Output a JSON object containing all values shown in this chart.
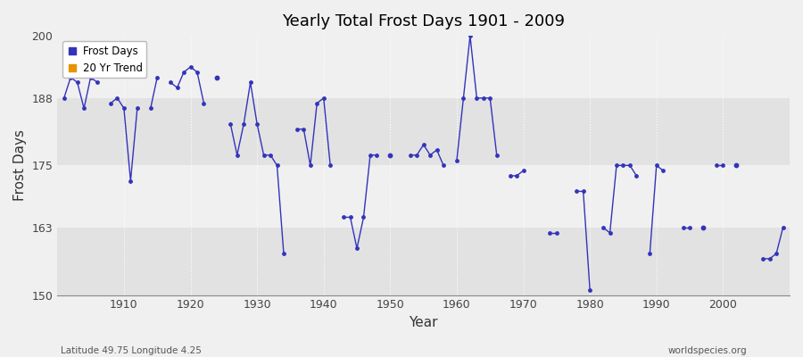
{
  "title": "Yearly Total Frost Days 1901 - 2009",
  "xlabel": "Year",
  "ylabel": "Frost Days",
  "lat_lon_label": "Latitude 49.75 Longitude 4.25",
  "source_label": "worldspecies.org",
  "ylim": [
    150,
    200
  ],
  "xlim": [
    1900,
    2010
  ],
  "yticks": [
    150,
    163,
    175,
    188,
    200
  ],
  "xticks": [
    1910,
    1920,
    1930,
    1940,
    1950,
    1960,
    1970,
    1980,
    1990,
    2000
  ],
  "line_color": "#3333bb",
  "bg_color": "#f0f0f0",
  "band_colors": [
    "#e2e2e2",
    "#f0f0f0",
    "#e2e2e2",
    "#f0f0f0"
  ],
  "band_ranges": [
    [
      150,
      163
    ],
    [
      163,
      175
    ],
    [
      175,
      188
    ],
    [
      188,
      200
    ]
  ],
  "frost_days_years": [
    1901,
    1902,
    1903,
    1904,
    1905,
    1906,
    1908,
    1909,
    1910,
    1911,
    1912,
    1914,
    1915,
    1917,
    1918,
    1919,
    1920,
    1921,
    1922,
    1924,
    1926,
    1927,
    1928,
    1929,
    1930,
    1931,
    1932,
    1933,
    1934,
    1936,
    1937,
    1938,
    1939,
    1940,
    1941,
    1943,
    1944,
    1945,
    1946,
    1947,
    1948,
    1950,
    1953,
    1954,
    1955,
    1956,
    1957,
    1958,
    1960,
    1961,
    1962,
    1963,
    1964,
    1965,
    1966,
    1968,
    1969,
    1970,
    1974,
    1975,
    1978,
    1979,
    1980,
    1982,
    1983,
    1984,
    1985,
    1986,
    1987,
    1989,
    1990,
    1991,
    1994,
    1995,
    1997,
    1999,
    2000,
    2002,
    2006,
    2007,
    2008,
    2009
  ],
  "frost_days_values": [
    188,
    192,
    191,
    186,
    192,
    191,
    187,
    188,
    186,
    172,
    186,
    186,
    192,
    191,
    190,
    193,
    194,
    193,
    187,
    192,
    183,
    177,
    183,
    191,
    183,
    177,
    177,
    175,
    158,
    182,
    182,
    175,
    187,
    188,
    175,
    165,
    165,
    159,
    165,
    177,
    177,
    177,
    177,
    177,
    179,
    177,
    178,
    175,
    176,
    188,
    200,
    188,
    188,
    188,
    177,
    173,
    173,
    174,
    162,
    162,
    170,
    170,
    151,
    163,
    162,
    175,
    175,
    175,
    173,
    158,
    175,
    174,
    163,
    163,
    163,
    175,
    175,
    175,
    157,
    157,
    158,
    163
  ]
}
